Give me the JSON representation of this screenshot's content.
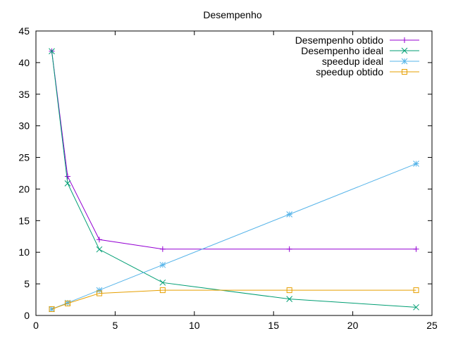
{
  "chart_data": {
    "type": "line",
    "title": "Desempenho",
    "xlabel": "",
    "ylabel": "",
    "xlim": [
      0,
      25
    ],
    "ylim": [
      0,
      45
    ],
    "xticks": [
      0,
      5,
      10,
      15,
      20,
      25
    ],
    "yticks": [
      0,
      5,
      10,
      15,
      20,
      25,
      30,
      35,
      40,
      45
    ],
    "grid": false,
    "legend_position": "top-right",
    "series": [
      {
        "name": "Desempenho obtido",
        "color": "#9400d3",
        "marker": "plus",
        "x": [
          1,
          2,
          4,
          8,
          16,
          24
        ],
        "y": [
          41.8,
          22.0,
          12.0,
          10.5,
          10.5,
          10.5
        ]
      },
      {
        "name": "Desempenho ideal",
        "color": "#009e73",
        "marker": "cross",
        "x": [
          1,
          2,
          4,
          8,
          16,
          24
        ],
        "y": [
          41.8,
          20.9,
          10.45,
          5.2,
          2.6,
          1.3
        ]
      },
      {
        "name": "speedup ideal",
        "color": "#56b4e9",
        "marker": "star",
        "x": [
          1,
          2,
          4,
          8,
          16,
          24
        ],
        "y": [
          1,
          2,
          4,
          8,
          16,
          24
        ]
      },
      {
        "name": "speedup obtido",
        "color": "#e69f00",
        "marker": "square",
        "x": [
          1,
          2,
          4,
          8,
          16,
          24
        ],
        "y": [
          1,
          1.9,
          3.5,
          4.0,
          4.0,
          4.0
        ]
      }
    ]
  }
}
